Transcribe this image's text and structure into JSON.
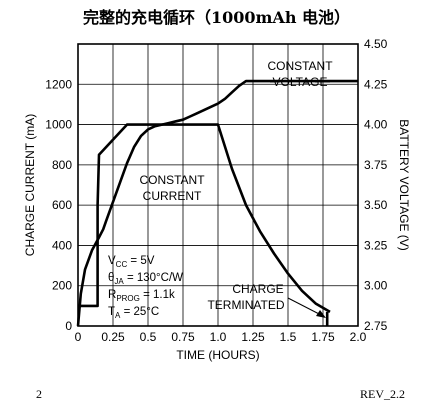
{
  "chart_data": {
    "type": "line",
    "title": "完整的充电循环（1000mAh 电池）",
    "xlabel": "TIME (HOURS)",
    "ylabel_left": "CHARGE CURRENT (mA)",
    "ylabel_right": "BATTERY VOLTAGE (V)",
    "xlim": [
      0,
      2.0
    ],
    "ylim_left": [
      0,
      1400
    ],
    "ylim_right": [
      2.75,
      4.5
    ],
    "grid": true,
    "x_ticks": [
      "0",
      "0.25",
      "0.5",
      "0.75",
      "1.0",
      "1.25",
      "1.5",
      "1.75",
      "2.0"
    ],
    "x_tick_values": [
      0,
      0.25,
      0.5,
      0.75,
      1.0,
      1.25,
      1.5,
      1.75,
      2.0
    ],
    "y_left_ticks": [
      "0",
      "200",
      "400",
      "600",
      "800",
      "1000",
      "1200"
    ],
    "y_left_tick_values": [
      0,
      200,
      400,
      600,
      800,
      1000,
      1200
    ],
    "y_right_ticks": [
      "2.75",
      "3.00",
      "3.25",
      "3.50",
      "3.75",
      "4.00",
      "4.25",
      "4.50"
    ],
    "y_right_tick_values": [
      2.75,
      3.0,
      3.25,
      3.5,
      3.75,
      4.0,
      4.25,
      4.5
    ],
    "series": [
      {
        "axis": "left",
        "x": [
          0,
          0.14,
          0.14,
          0.15,
          0.15,
          0.35,
          1.0,
          1.1,
          1.2,
          1.3,
          1.4,
          1.5,
          1.6,
          1.7,
          1.8
        ],
        "values": [
          100,
          100,
          600,
          850,
          850,
          1000,
          1000,
          780,
          600,
          470,
          360,
          260,
          175,
          110,
          70
        ]
      },
      {
        "axis": "right",
        "x": [
          0,
          0.02,
          0.05,
          0.1,
          0.15,
          0.18,
          0.2,
          0.25,
          0.3,
          0.35,
          0.4,
          0.45,
          0.5,
          0.55,
          0.6,
          0.65,
          0.7,
          0.75,
          0.8,
          0.85,
          0.9,
          0.95,
          1.0,
          1.05,
          1.1,
          1.15,
          1.2,
          1.5,
          1.8,
          2.0
        ],
        "values": [
          2.75,
          2.95,
          3.1,
          3.22,
          3.3,
          3.35,
          3.4,
          3.52,
          3.64,
          3.76,
          3.86,
          3.93,
          3.97,
          3.99,
          4.0,
          4.01,
          4.02,
          4.03,
          4.05,
          4.07,
          4.09,
          4.11,
          4.13,
          4.16,
          4.2,
          4.24,
          4.27,
          4.27,
          4.27,
          4.27
        ]
      },
      {
        "axis": "left",
        "x": [
          1.78,
          1.78
        ],
        "values": [
          70,
          0
        ]
      }
    ],
    "annotations": {
      "constant_voltage_line1": "CONSTANT",
      "constant_voltage_line2": "VOLTAGE",
      "constant_current_line1": "CONSTANT",
      "constant_current_line2": "CURRENT",
      "vcc_main": "V",
      "vcc_sub": "CC",
      "vcc_value": " = 5V",
      "theta_main": "θ",
      "theta_sub": "JA",
      "theta_value": " = 130°C/W",
      "rprog_main": "R",
      "rprog_sub": "PROG",
      "rprog_value": " = 1.1k",
      "ta_main": "T",
      "ta_sub": "A",
      "ta_value": " = 25°C",
      "charge_terminated_line1": "CHARGE",
      "charge_terminated_line2": "TERMINATED"
    }
  },
  "footer": {
    "page_number": "2",
    "revision": "REV_2.2"
  }
}
